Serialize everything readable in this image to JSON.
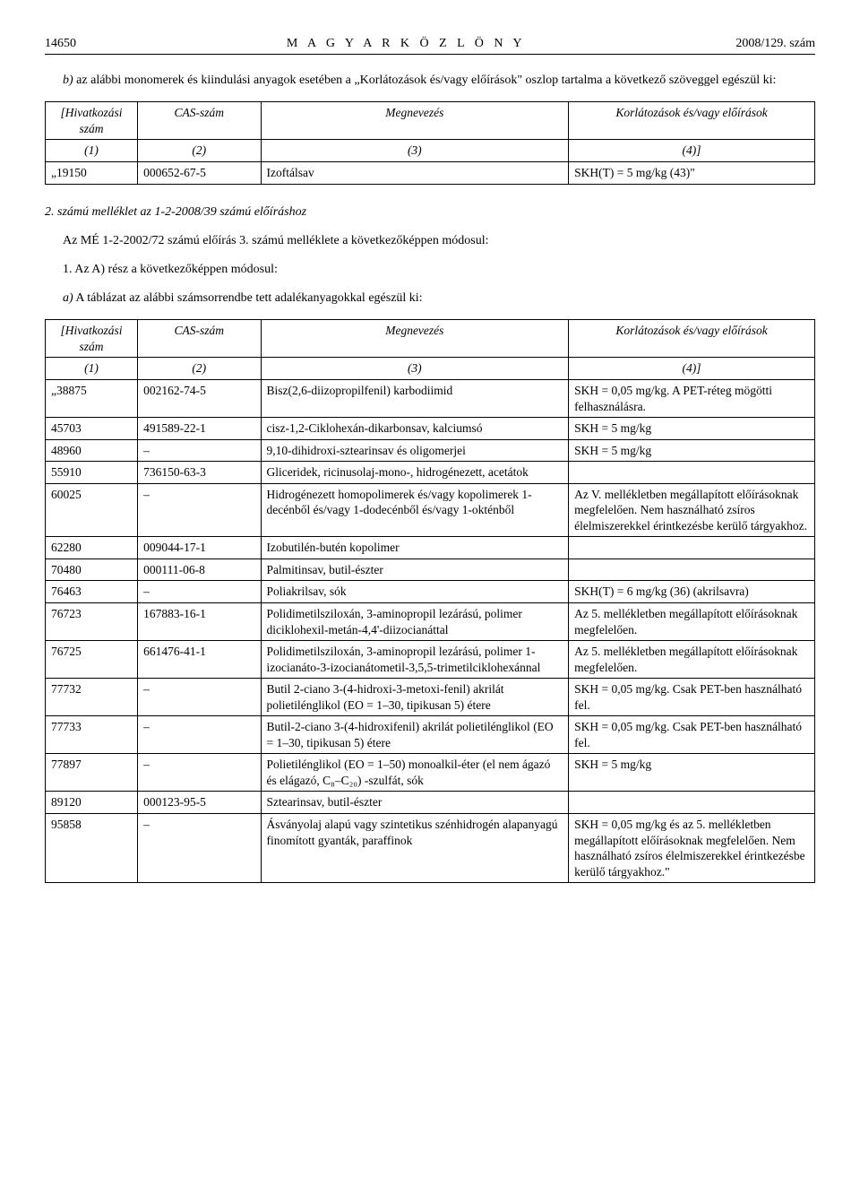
{
  "header": {
    "page_left": "14650",
    "gazette_title": "M A G Y A R   K Ö Z L Ö N Y",
    "page_right": "2008/129. szám"
  },
  "intro_b": "b) az alábbi monomerek és kiindulási anyagok esetében a „Korlátozások és/vagy előírások\" oszlop tartalma a következő szöveggel egészül ki:",
  "table_headers": {
    "ref": "[Hivatkozási szám",
    "cas": "CAS-szám",
    "name": "Megnevezés",
    "restrict": "Korlátozások és/vagy előírások",
    "c1": "(1)",
    "c2": "(2)",
    "c3": "(3)",
    "c4": "(4)]"
  },
  "table1_rows": [
    {
      "ref": "„19150",
      "cas": "000652-67-5",
      "name": "Izoftálsav",
      "restrict": "SKH(T) = 5 mg/kg (43)\""
    }
  ],
  "mid_heading": "2. számú melléklet az 1-2-2008/39 számú előíráshoz",
  "mid_p1": "Az MÉ 1-2-2002/72 számú előírás 3. számú melléklete a következőképpen módosul:",
  "mid_p2": "1. Az A) rész a következőképpen módosul:",
  "mid_p3": "a) A táblázat az alábbi számsorrendbe tett adalékanyagokkal egészül ki:",
  "table2_rows": [
    {
      "ref": "„38875",
      "cas": "002162-74-5",
      "name": "Bisz(2,6-diizopropilfenil) karbodiimid",
      "restrict": "SKH = 0,05 mg/kg. A PET-réteg mögötti felhasználásra."
    },
    {
      "ref": "45703",
      "cas": "491589-22-1",
      "name": "cisz-1,2-Ciklohexán-dikarbonsav, kalciumsó",
      "restrict": "SKH = 5 mg/kg"
    },
    {
      "ref": "48960",
      "cas": "–",
      "name": "9,10-dihidroxi-sztearinsav és oligomerjei",
      "restrict": "SKH = 5 mg/kg"
    },
    {
      "ref": "55910",
      "cas": "736150-63-3",
      "name": "Gliceridek, ricinusolaj-mono-, hidrogénezett, acetátok",
      "restrict": ""
    },
    {
      "ref": "60025",
      "cas": "–",
      "name": "Hidrogénezett homopolimerek és/vagy kopolimerek 1-decénből és/vagy 1-dodecénből és/vagy 1-okténből",
      "restrict": "Az V. mellékletben megállapított előírásoknak megfelelően. Nem használható zsíros élelmiszerekkel érintkezésbe kerülő tárgyakhoz."
    },
    {
      "ref": "62280",
      "cas": "009044-17-1",
      "name": "Izobutilén-butén kopolimer",
      "restrict": ""
    },
    {
      "ref": "70480",
      "cas": "000111-06-8",
      "name": "Palmitinsav, butil-észter",
      "restrict": ""
    },
    {
      "ref": "76463",
      "cas": "–",
      "name": "Poliakrilsav, sók",
      "restrict": "SKH(T) = 6 mg/kg (36) (akrilsavra)"
    },
    {
      "ref": "76723",
      "cas": "167883-16-1",
      "name": "Polidimetilsziloxán, 3-aminopropil lezárású, polimer diciklohexil-metán-4,4'-diizocianáttal",
      "restrict": "Az 5. mellékletben megállapított előírásoknak megfelelően."
    },
    {
      "ref": "76725",
      "cas": "661476-41-1",
      "name": "Polidimetilsziloxán, 3-aminopropil lezárású, polimer 1-izocianáto-3-izocianátometil-3,5,5-trimetilciklohexánnal",
      "restrict": "Az 5. mellékletben megállapított előírásoknak megfelelően."
    },
    {
      "ref": "77732",
      "cas": "–",
      "name": "Butil 2-ciano 3-(4-hidroxi-3-metoxi-fenil) akrilát polietilénglikol (EO = 1–30, tipikusan 5) étere",
      "restrict": "SKH = 0,05 mg/kg. Csak PET-ben használható fel."
    },
    {
      "ref": "77733",
      "cas": "–",
      "name": "Butil-2-ciano 3-(4-hidroxifenil) akrilát polietilénglikol (EO = 1–30, tipikusan 5) étere",
      "restrict": "SKH = 0,05 mg/kg. Csak PET-ben használható fel."
    },
    {
      "ref": "77897",
      "cas": "–",
      "name": "Polietilénglikol (EO = 1–50) monoalkil-éter (el nem ágazó és elágazó, C₈–C₂₀) -szulfát, sók",
      "restrict": "SKH = 5 mg/kg"
    },
    {
      "ref": "89120",
      "cas": "000123-95-5",
      "name": "Sztearinsav, butil-észter",
      "restrict": ""
    },
    {
      "ref": "95858",
      "cas": "–",
      "name": "Ásványolaj alapú vagy szintetikus szénhidrogén alapanyagú finomított gyanták, paraffinok",
      "restrict": "SKH = 0,05 mg/kg és az 5. mellékletben megállapított előírásoknak megfelelően. Nem használható zsíros élelmiszerekkel érintkezésbe kerülő tárgyakhoz.\""
    }
  ]
}
